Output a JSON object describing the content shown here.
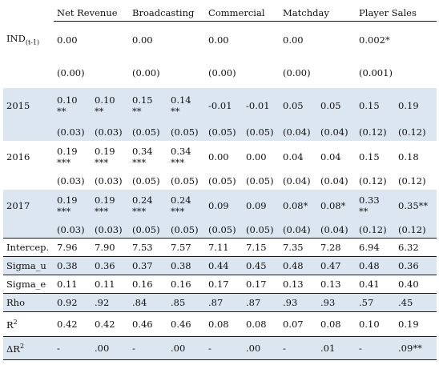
{
  "headers": [
    "Net Revenue",
    "Broadcasting",
    "Commercial",
    "Matchday",
    "Player Sales"
  ],
  "rows": [
    {
      "label": "IND",
      "sub": "(t-1)",
      "shade": false,
      "h": 46,
      "cells": [
        {
          "text": "0.00",
          "span": 2
        },
        {
          "text": "0.00",
          "span": 2
        },
        {
          "text": "0.00",
          "span": 2
        },
        {
          "text": "0.00",
          "span": 2
        },
        {
          "text": "0.002*",
          "span": 2
        }
      ]
    },
    {
      "label": "",
      "shade": false,
      "h": 37,
      "cells": [
        {
          "text": "(0.00)",
          "span": 2
        },
        {
          "text": "(0.00)",
          "span": 2
        },
        {
          "text": "(0.00)",
          "span": 2
        },
        {
          "text": "(0.00)",
          "span": 2
        },
        {
          "text": "(0.001)",
          "span": 2
        }
      ]
    },
    {
      "label": "2015",
      "shade": true,
      "h": 45,
      "cells": [
        "0.10\n**",
        "0.10\n**",
        "0.15\n**",
        "0.14\n**",
        "-0.01",
        "-0.01",
        "0.05",
        "0.05",
        "0.15",
        "0.19"
      ]
    },
    {
      "label": "",
      "shade": true,
      "h": 21,
      "cells": [
        "(0.03)",
        "(0.03)",
        "(0.05)",
        "(0.05)",
        "(0.05)",
        "(0.05)",
        "(0.04)",
        "(0.04)",
        "(0.12)",
        "(0.12)"
      ]
    },
    {
      "label": "2016",
      "shade": false,
      "h": 40,
      "cells": [
        "0.19\n***",
        "0.19\n***",
        "0.34\n***",
        "0.34\n***",
        "0.00",
        "0.00",
        "0.04",
        "0.04",
        "0.15",
        "0.18"
      ]
    },
    {
      "label": "",
      "shade": false,
      "h": 21,
      "cells": [
        "(0.03)",
        "(0.03)",
        "(0.05)",
        "(0.05)",
        "(0.05)",
        "(0.05)",
        "(0.04)",
        "(0.04)",
        "(0.12)",
        "(0.12)"
      ]
    },
    {
      "label": "2017",
      "shade": true,
      "h": 40,
      "cells": [
        "0.19\n***",
        "0.19\n***",
        "0.24\n***",
        "0.24\n***",
        "0.09",
        "0.09",
        "0.08*",
        "0.08*",
        "0.33\n**",
        "0.35**"
      ]
    },
    {
      "label": "",
      "shade": true,
      "h": 21,
      "cells": [
        "(0.03)",
        "(0.03)",
        "(0.05)",
        "(0.05)",
        "(0.05)",
        "(0.05)",
        "(0.04)",
        "(0.04)",
        "(0.12)",
        "(0.12)"
      ]
    },
    {
      "label": "Intercep.",
      "shade": false,
      "h": 23,
      "sep": true,
      "cells": [
        "7.96",
        "7.90",
        "7.53",
        "7.57",
        "7.11",
        "7.15",
        "7.35",
        "7.28",
        "6.94",
        "6.32"
      ]
    },
    {
      "label": "Sigma_u",
      "shade": true,
      "h": 23,
      "sep": true,
      "cells": [
        "0.38",
        "0.36",
        "0.37",
        "0.38",
        "0.44",
        "0.45",
        "0.48",
        "0.47",
        "0.48",
        "0.36"
      ]
    },
    {
      "label": "Sigma_e",
      "shade": false,
      "h": 23,
      "sep": true,
      "cells": [
        "0.11",
        "0.11",
        "0.16",
        "0.16",
        "0.17",
        "0.17",
        "0.13",
        "0.13",
        "0.41",
        "0.40"
      ]
    },
    {
      "label": "Rho",
      "shade": true,
      "h": 23,
      "sep": true,
      "cells": [
        "0.92",
        ".92",
        ".84",
        ".85",
        ".87",
        ".87",
        ".93",
        ".93",
        ".57",
        ".45"
      ]
    },
    {
      "label": "R",
      "sup": "2",
      "shade": false,
      "h": 31,
      "sep": true,
      "cells": [
        "0.42",
        "0.42",
        "0.46",
        "0.46",
        "0.08",
        "0.08",
        "0.07",
        "0.08",
        "0.10",
        "0.19"
      ]
    },
    {
      "label": "ΔR",
      "sup": "2",
      "shade": true,
      "h": 29,
      "sep": true,
      "last": true,
      "cells": [
        "-",
        ".00",
        "-",
        ".00",
        "-",
        ".00",
        "-",
        ".01",
        "-",
        ".09**"
      ]
    }
  ]
}
